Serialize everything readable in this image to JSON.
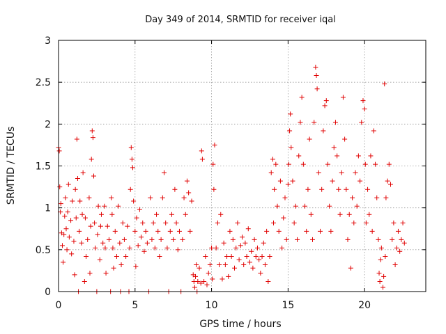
{
  "chart_data": {
    "type": "scatter",
    "title": "Day 349 of 2014, SRMTID for receiver iqal",
    "xlabel": "GPS time / hours",
    "ylabel": "SRMTID / TECUs",
    "xlim": [
      0,
      24
    ],
    "ylim": [
      0,
      3
    ],
    "xticks": [
      0,
      5,
      10,
      15,
      20
    ],
    "xtick_labels": [
      "0",
      "5",
      "10",
      "15",
      "20"
    ],
    "yticks": [
      0,
      0.5,
      1,
      1.5,
      2,
      2.5,
      3
    ],
    "ytick_labels": [
      "0",
      "0.5",
      "1",
      "1.5",
      "2",
      "2.5",
      "3"
    ],
    "grid": true,
    "marker": "plus",
    "color": "#e00000",
    "series": [
      {
        "name": "SRMTID",
        "points": [
          [
            0.0,
            1.72
          ],
          [
            0.05,
            1.68
          ],
          [
            0.08,
            1.25
          ],
          [
            0.12,
            0.95
          ],
          [
            0.15,
            1.05
          ],
          [
            0.2,
            0.7
          ],
          [
            0.25,
            0.55
          ],
          [
            0.3,
            0.35
          ],
          [
            0.35,
            0.68
          ],
          [
            0.4,
            0.9
          ],
          [
            0.45,
            1.12
          ],
          [
            0.5,
            0.75
          ],
          [
            0.55,
            0.5
          ],
          [
            0.6,
            0.95
          ],
          [
            0.65,
            1.28
          ],
          [
            0.7,
            0.65
          ],
          [
            0.8,
            0.85
          ],
          [
            0.85,
            0.45
          ],
          [
            0.9,
            1.08
          ],
          [
            1.0,
            0.6
          ],
          [
            1.05,
            0.2
          ],
          [
            1.1,
            1.22
          ],
          [
            1.15,
            0.88
          ],
          [
            1.2,
            1.82
          ],
          [
            1.25,
            1.35
          ],
          [
            1.3,
            0.0
          ],
          [
            1.35,
            0.72
          ],
          [
            1.4,
            1.08
          ],
          [
            1.5,
            0.58
          ],
          [
            1.55,
            0.92
          ],
          [
            1.6,
            1.42
          ],
          [
            1.7,
            0.12
          ],
          [
            1.75,
            0.88
          ],
          [
            1.8,
            0.42
          ],
          [
            1.9,
            0.62
          ],
          [
            2.0,
            1.12
          ],
          [
            2.05,
            0.22
          ],
          [
            2.1,
            0.78
          ],
          [
            2.15,
            1.58
          ],
          [
            2.2,
            1.92
          ],
          [
            2.25,
            1.84
          ],
          [
            2.3,
            1.38
          ],
          [
            2.35,
            0.82
          ],
          [
            2.4,
            0.52
          ],
          [
            2.5,
            0.0
          ],
          [
            2.55,
            0.68
          ],
          [
            2.6,
            1.02
          ],
          [
            2.7,
            0.38
          ],
          [
            2.75,
            0.78
          ],
          [
            2.8,
            0.92
          ],
          [
            2.9,
            0.58
          ],
          [
            3.0,
            1.02
          ],
          [
            3.05,
            0.52
          ],
          [
            3.1,
            0.22
          ],
          [
            3.2,
            0.78
          ],
          [
            3.3,
            0.62
          ],
          [
            3.4,
            0.0
          ],
          [
            3.45,
            1.12
          ],
          [
            3.5,
            0.92
          ],
          [
            3.55,
            0.52
          ],
          [
            3.6,
            0.28
          ],
          [
            3.7,
            0.72
          ],
          [
            3.8,
            0.42
          ],
          [
            3.9,
            1.02
          ],
          [
            4.0,
            0.58
          ],
          [
            4.05,
            0.0
          ],
          [
            4.1,
            0.32
          ],
          [
            4.2,
            0.82
          ],
          [
            4.3,
            0.62
          ],
          [
            4.4,
            0.42
          ],
          [
            4.5,
            0.78
          ],
          [
            4.6,
            0.0
          ],
          [
            4.65,
            0.52
          ],
          [
            4.7,
            1.22
          ],
          [
            4.75,
            1.72
          ],
          [
            4.8,
            1.58
          ],
          [
            4.85,
            1.48
          ],
          [
            4.9,
            1.08
          ],
          [
            5.0,
            0.72
          ],
          [
            5.05,
            0.3
          ],
          [
            5.1,
            0.88
          ],
          [
            5.2,
            0.55
          ],
          [
            5.3,
            0.98
          ],
          [
            5.4,
            0.65
          ],
          [
            5.5,
            0.82
          ],
          [
            5.6,
            0.48
          ],
          [
            5.7,
            0.72
          ],
          [
            5.8,
            0.58
          ],
          [
            5.9,
            0.0
          ],
          [
            6.0,
            1.12
          ],
          [
            6.1,
            0.62
          ],
          [
            6.2,
            0.82
          ],
          [
            6.3,
            0.52
          ],
          [
            6.4,
            0.92
          ],
          [
            6.5,
            0.72
          ],
          [
            6.6,
            0.42
          ],
          [
            6.7,
            0.62
          ],
          [
            6.8,
            1.12
          ],
          [
            6.9,
            1.42
          ],
          [
            7.0,
            0.82
          ],
          [
            7.1,
            0.52
          ],
          [
            7.2,
            0.0
          ],
          [
            7.3,
            0.72
          ],
          [
            7.4,
            0.92
          ],
          [
            7.5,
            0.62
          ],
          [
            7.6,
            1.22
          ],
          [
            7.7,
            0.82
          ],
          [
            7.8,
            0.5
          ],
          [
            7.9,
            0.72
          ],
          [
            8.0,
            0.0
          ],
          [
            8.1,
            0.62
          ],
          [
            8.2,
            1.12
          ],
          [
            8.3,
            0.92
          ],
          [
            8.4,
            1.32
          ],
          [
            8.5,
            1.18
          ],
          [
            8.6,
            0.72
          ],
          [
            8.7,
            1.08
          ],
          [
            8.8,
            0.2
          ],
          [
            8.85,
            0.12
          ],
          [
            8.9,
            0.05
          ],
          [
            8.95,
            0.18
          ],
          [
            9.0,
            0.32
          ],
          [
            9.05,
            0.0
          ],
          [
            9.1,
            0.12
          ],
          [
            9.2,
            0.28
          ],
          [
            9.3,
            0.1
          ],
          [
            9.35,
            1.68
          ],
          [
            9.4,
            1.58
          ],
          [
            9.5,
            0.12
          ],
          [
            9.6,
            0.42
          ],
          [
            9.7,
            0.08
          ],
          [
            9.8,
            0.22
          ],
          [
            9.9,
            0.32
          ],
          [
            10.0,
            0.52
          ],
          [
            10.05,
            0.15
          ],
          [
            10.1,
            1.52
          ],
          [
            10.15,
            1.22
          ],
          [
            10.2,
            1.75
          ],
          [
            10.3,
            0.52
          ],
          [
            10.4,
            0.82
          ],
          [
            10.5,
            0.32
          ],
          [
            10.6,
            0.92
          ],
          [
            10.7,
            0.15
          ],
          [
            10.8,
            0.58
          ],
          [
            10.9,
            0.32
          ],
          [
            11.0,
            0.42
          ],
          [
            11.1,
            0.18
          ],
          [
            11.2,
            0.72
          ],
          [
            11.3,
            0.42
          ],
          [
            11.4,
            0.62
          ],
          [
            11.5,
            0.28
          ],
          [
            11.6,
            0.52
          ],
          [
            11.7,
            0.82
          ],
          [
            11.8,
            0.38
          ],
          [
            11.9,
            0.55
          ],
          [
            12.0,
            0.65
          ],
          [
            12.1,
            0.32
          ],
          [
            12.2,
            0.58
          ],
          [
            12.3,
            0.42
          ],
          [
            12.4,
            0.75
          ],
          [
            12.5,
            0.35
          ],
          [
            12.6,
            0.48
          ],
          [
            12.7,
            0.28
          ],
          [
            12.8,
            0.62
          ],
          [
            12.9,
            0.42
          ],
          [
            13.0,
            0.52
          ],
          [
            13.1,
            0.38
          ],
          [
            13.2,
            0.22
          ],
          [
            13.3,
            0.42
          ],
          [
            13.4,
            0.58
          ],
          [
            13.5,
            0.32
          ],
          [
            13.6,
            0.72
          ],
          [
            13.7,
            0.12
          ],
          [
            13.8,
            0.42
          ],
          [
            13.9,
            1.42
          ],
          [
            14.0,
            1.58
          ],
          [
            14.05,
            0.82
          ],
          [
            14.1,
            1.22
          ],
          [
            14.2,
            1.52
          ],
          [
            14.3,
            1.02
          ],
          [
            14.4,
            0.72
          ],
          [
            14.5,
            1.32
          ],
          [
            14.6,
            0.52
          ],
          [
            14.7,
            0.88
          ],
          [
            14.8,
            1.12
          ],
          [
            14.9,
            0.62
          ],
          [
            15.0,
            1.28
          ],
          [
            15.05,
            1.52
          ],
          [
            15.1,
            1.92
          ],
          [
            15.15,
            2.12
          ],
          [
            15.2,
            1.72
          ],
          [
            15.3,
            1.32
          ],
          [
            15.4,
            0.82
          ],
          [
            15.5,
            1.02
          ],
          [
            15.6,
            0.62
          ],
          [
            15.7,
            1.62
          ],
          [
            15.8,
            2.02
          ],
          [
            15.9,
            2.32
          ],
          [
            16.0,
            1.52
          ],
          [
            16.1,
            1.02
          ],
          [
            16.2,
            0.72
          ],
          [
            16.3,
            1.22
          ],
          [
            16.4,
            1.82
          ],
          [
            16.5,
            0.92
          ],
          [
            16.6,
            0.62
          ],
          [
            16.7,
            2.02
          ],
          [
            16.8,
            2.68
          ],
          [
            16.85,
            2.58
          ],
          [
            16.9,
            2.42
          ],
          [
            17.0,
            1.42
          ],
          [
            17.1,
            0.72
          ],
          [
            17.2,
            1.22
          ],
          [
            17.3,
            1.92
          ],
          [
            17.4,
            2.22
          ],
          [
            17.5,
            2.28
          ],
          [
            17.6,
            1.52
          ],
          [
            17.7,
            1.02
          ],
          [
            17.8,
            0.72
          ],
          [
            17.9,
            1.32
          ],
          [
            18.0,
            1.72
          ],
          [
            18.1,
            2.02
          ],
          [
            18.2,
            1.62
          ],
          [
            18.3,
            1.22
          ],
          [
            18.4,
            0.92
          ],
          [
            18.5,
            1.42
          ],
          [
            18.6,
            2.32
          ],
          [
            18.7,
            1.82
          ],
          [
            18.8,
            1.22
          ],
          [
            18.9,
            0.62
          ],
          [
            19.0,
            0.92
          ],
          [
            19.1,
            0.28
          ],
          [
            19.2,
            1.12
          ],
          [
            19.3,
            0.82
          ],
          [
            19.4,
            1.42
          ],
          [
            19.5,
            1.02
          ],
          [
            19.6,
            1.62
          ],
          [
            19.7,
            1.32
          ],
          [
            19.8,
            2.02
          ],
          [
            19.9,
            2.28
          ],
          [
            20.0,
            2.18
          ],
          [
            20.05,
            1.52
          ],
          [
            20.1,
            0.82
          ],
          [
            20.2,
            1.22
          ],
          [
            20.3,
            0.92
          ],
          [
            20.4,
            1.62
          ],
          [
            20.5,
            0.72
          ],
          [
            20.6,
            1.92
          ],
          [
            20.7,
            1.52
          ],
          [
            20.8,
            1.12
          ],
          [
            20.9,
            0.62
          ],
          [
            20.95,
            0.22
          ],
          [
            21.0,
            0.12
          ],
          [
            21.05,
            0.38
          ],
          [
            21.1,
            0.52
          ],
          [
            21.2,
            0.05
          ],
          [
            21.25,
            0.18
          ],
          [
            21.3,
            2.48
          ],
          [
            21.35,
            0.42
          ],
          [
            21.4,
            1.12
          ],
          [
            21.5,
            1.32
          ],
          [
            21.6,
            1.52
          ],
          [
            21.7,
            1.28
          ],
          [
            21.8,
            0.62
          ],
          [
            21.9,
            0.82
          ],
          [
            22.0,
            0.32
          ],
          [
            22.1,
            0.52
          ],
          [
            22.2,
            0.72
          ],
          [
            22.3,
            0.48
          ],
          [
            22.4,
            0.62
          ],
          [
            22.5,
            0.82
          ],
          [
            22.6,
            0.58
          ]
        ]
      }
    ]
  }
}
